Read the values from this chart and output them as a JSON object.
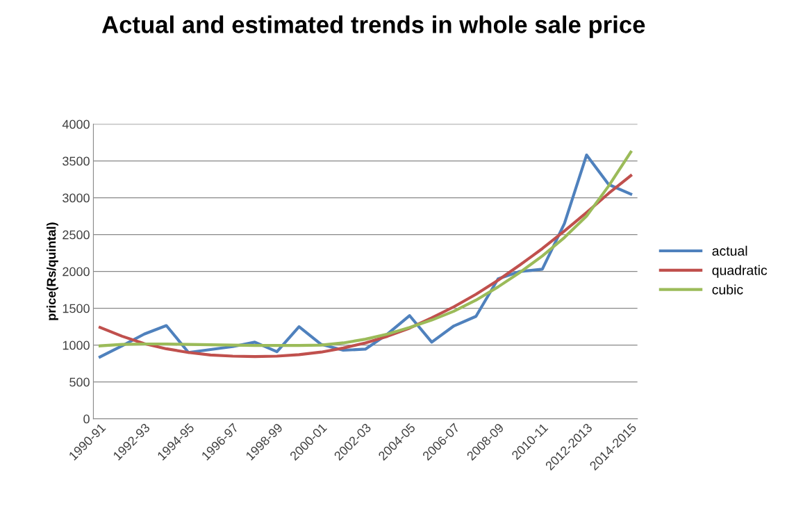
{
  "chart_data": {
    "type": "line",
    "title": "Actual and estimated trends in whole sale price",
    "ylabel": "price(Rs/quintal)",
    "categories": [
      "1990-91",
      null,
      "1992-93",
      null,
      "1994-95",
      null,
      "1996-97",
      null,
      "1998-99",
      null,
      "2000-01",
      null,
      "2002-03",
      null,
      "2004-05",
      null,
      "2006-07",
      null,
      "2008-09",
      null,
      "2010-11",
      null,
      "2012-2013",
      null,
      "2014-2015"
    ],
    "series": [
      {
        "name": "actual",
        "color": "#4f81bd",
        "values": [
          840,
          990,
          1150,
          1265,
          900,
          940,
          980,
          1040,
          910,
          1250,
          1010,
          930,
          945,
          1150,
          1400,
          1040,
          1260,
          1390,
          1900,
          2000,
          2030,
          2650,
          3580,
          3180,
          3050
        ]
      },
      {
        "name": "quadratic",
        "color": "#c0504d",
        "values": [
          1240,
          1120,
          1020,
          950,
          900,
          865,
          850,
          845,
          850,
          870,
          905,
          960,
          1030,
          1120,
          1230,
          1370,
          1520,
          1690,
          1880,
          2090,
          2310,
          2550,
          2800,
          3060,
          3300
        ]
      },
      {
        "name": "cubic",
        "color": "#9bbb59",
        "values": [
          990,
          1010,
          1015,
          1015,
          1010,
          1005,
          1000,
          995,
          995,
          995,
          1000,
          1030,
          1080,
          1150,
          1240,
          1340,
          1460,
          1610,
          1790,
          1990,
          2210,
          2460,
          2750,
          3160,
          3620
        ]
      }
    ],
    "ylim": [
      0,
      4000
    ],
    "yticks": [
      0,
      500,
      1000,
      1500,
      2000,
      2500,
      3000,
      3500,
      4000
    ],
    "grid": "y",
    "legend": "right",
    "marker": "none",
    "line_style": "solid"
  }
}
